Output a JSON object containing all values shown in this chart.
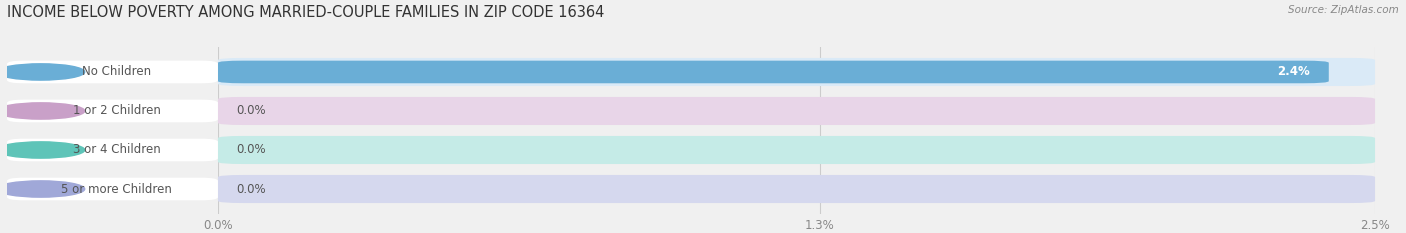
{
  "title": "INCOME BELOW POVERTY AMONG MARRIED-COUPLE FAMILIES IN ZIP CODE 16364",
  "source": "Source: ZipAtlas.com",
  "categories": [
    "No Children",
    "1 or 2 Children",
    "3 or 4 Children",
    "5 or more Children"
  ],
  "values": [
    2.4,
    0.0,
    0.0,
    0.0
  ],
  "max_value": 2.5,
  "bar_colors": [
    "#6aaed6",
    "#c9a0c8",
    "#5ec4b8",
    "#a0a8d8"
  ],
  "bar_bg_colors": [
    "#daeaf7",
    "#e8d5e8",
    "#c5ebe7",
    "#d5d8ee"
  ],
  "tick_labels": [
    "0.0%",
    "1.3%",
    "2.5%"
  ],
  "tick_values": [
    0.0,
    1.3,
    2.5
  ],
  "value_labels": [
    "2.4%",
    "0.0%",
    "0.0%",
    "0.0%"
  ],
  "bg_color": "#f0f0f0",
  "title_fontsize": 10.5,
  "label_fontsize": 8.5,
  "value_fontsize": 8.5,
  "tick_fontsize": 8.5,
  "label_text_color": "#555555",
  "value_text_color": "#555555",
  "grid_color": "#cccccc",
  "source_color": "#888888",
  "title_color": "#333333"
}
